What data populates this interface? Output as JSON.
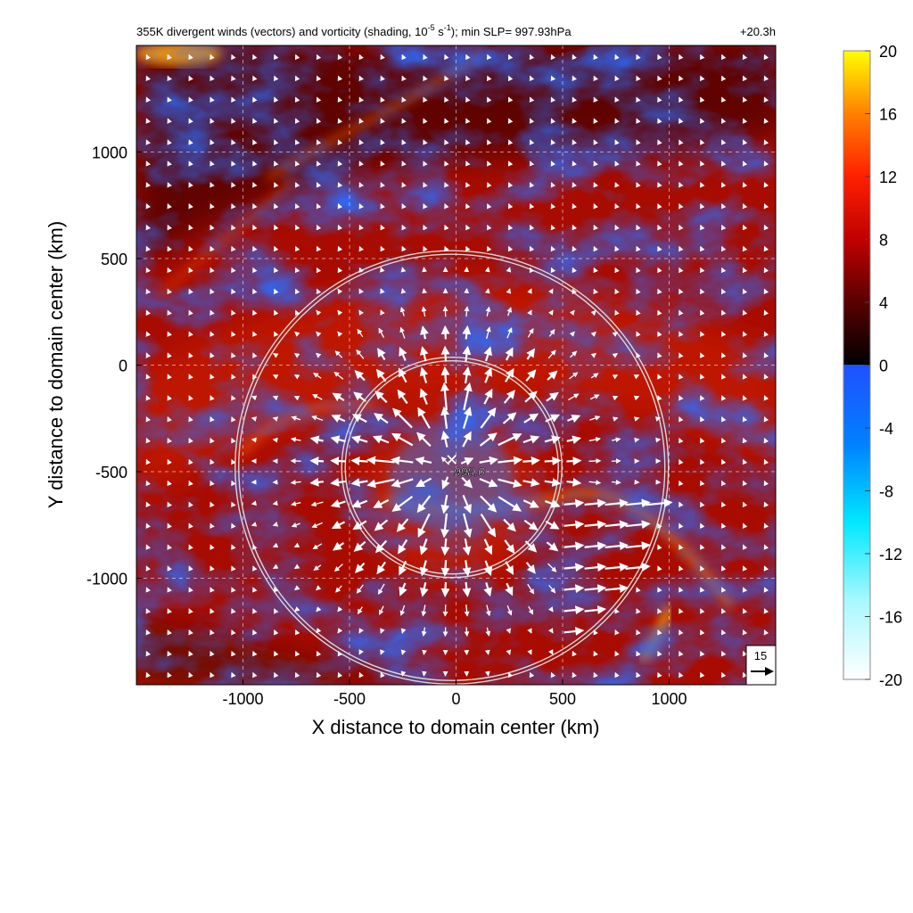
{
  "chart_data": {
    "type": "heatmap",
    "title": {
      "prefix": "355K divergent winds (vectors) and vorticity (shading, 10",
      "exp1": "-5",
      "middle": " s",
      "exp2": "-1",
      "suffix": "); min SLP= 997.93hPa"
    },
    "forecast_time": "+20.3h",
    "xlabel": "X distance to domain center (km)",
    "ylabel": "Y distance to domain center (km)",
    "xlim": [
      -1500,
      1500
    ],
    "ylim": [
      -1500,
      1500
    ],
    "x_ticks": [
      -1000,
      -500,
      0,
      500,
      1000
    ],
    "x_tick_labels": [
      "-1000",
      "-500",
      "0",
      "500",
      "1000"
    ],
    "y_ticks": [
      -1000,
      -500,
      0,
      500,
      1000
    ],
    "y_tick_labels": [
      "-1000",
      "-500",
      "0",
      "500",
      "1000"
    ],
    "grid": true,
    "grid_style": "dashed",
    "colorbar": {
      "range": [
        -20,
        20
      ],
      "ticks": [
        20,
        16,
        12,
        8,
        4,
        0,
        -4,
        -8,
        -12,
        -16,
        -20
      ],
      "tick_labels": [
        "20",
        "16",
        "12",
        "8",
        "4",
        "0",
        "-4",
        "-8",
        "-12",
        "-16",
        "-20"
      ],
      "positive_colors": [
        "#000000",
        "#5a0000",
        "#c00000",
        "#ff2000",
        "#ff8000",
        "#ffff00"
      ],
      "negative_colors": [
        "#2050ff",
        "#0080ff",
        "#00e8ff",
        "#a8f8ff",
        "#ffffff"
      ]
    },
    "center_marker": {
      "x": -20,
      "y": -480,
      "label": "998.0"
    },
    "range_circles": [
      {
        "center": [
          -20,
          -480
        ],
        "radius_km": 500
      },
      {
        "center": [
          -20,
          -480
        ],
        "radius_km": 1000
      }
    ],
    "reference_vector": {
      "label": "15"
    },
    "vector_grid_spacing_km": 100
  }
}
